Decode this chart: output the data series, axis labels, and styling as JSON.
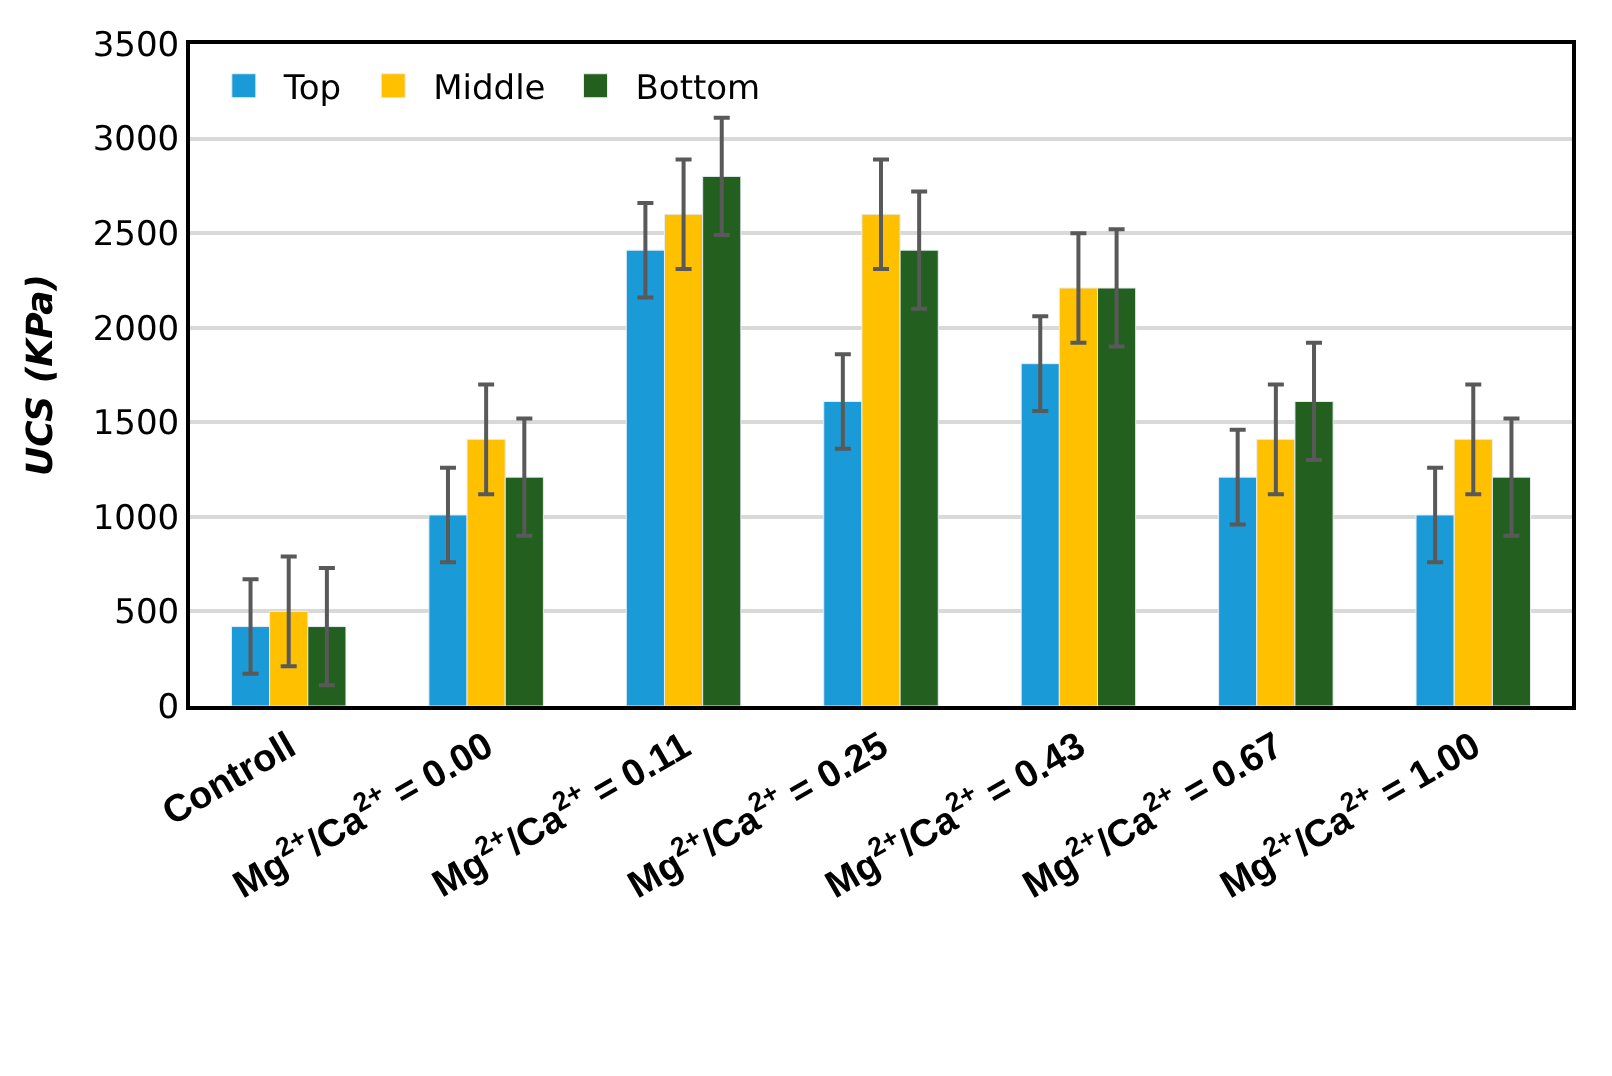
{
  "chart_data": {
    "type": "bar",
    "ylabel": "UCS (KPa)",
    "categories": [
      "Controll",
      "Mg$^{2+}$/Ca$^{2+}$ = 0.00",
      "Mg$^{2+}$/Ca$^{2+}$ = 0.11",
      "Mg$^{2+}$/Ca$^{2+}$ = 0.25",
      "Mg$^{2+}$/Ca$^{2+}$ = 0.43",
      "Mg$^{2+}$/Ca$^{2+}$ = 0.67",
      "Mg$^{2+}$/Ca$^{2+}$ = 1.00"
    ],
    "series": [
      {
        "name": "Top",
        "color": "#1a9bd7",
        "values": [
          420,
          1010,
          2410,
          1610,
          1810,
          1210,
          1010
        ],
        "errors": [
          250,
          250,
          250,
          250,
          250,
          250,
          250
        ]
      },
      {
        "name": "Middle",
        "color": "#ffc000",
        "values": [
          500,
          1410,
          2600,
          2600,
          2210,
          1410,
          1410
        ],
        "errors": [
          290,
          290,
          290,
          290,
          290,
          290,
          290
        ]
      },
      {
        "name": "Bottom",
        "color": "#235f1e",
        "values": [
          420,
          1210,
          2800,
          2410,
          2210,
          1610,
          1210
        ],
        "errors": [
          310,
          310,
          310,
          310,
          310,
          310,
          310
        ]
      }
    ],
    "ylim": [
      0,
      3500
    ],
    "yticks": [
      0,
      500,
      1000,
      1500,
      2000,
      2500,
      3000,
      3500
    ],
    "grid": "y",
    "legend": "top left"
  }
}
